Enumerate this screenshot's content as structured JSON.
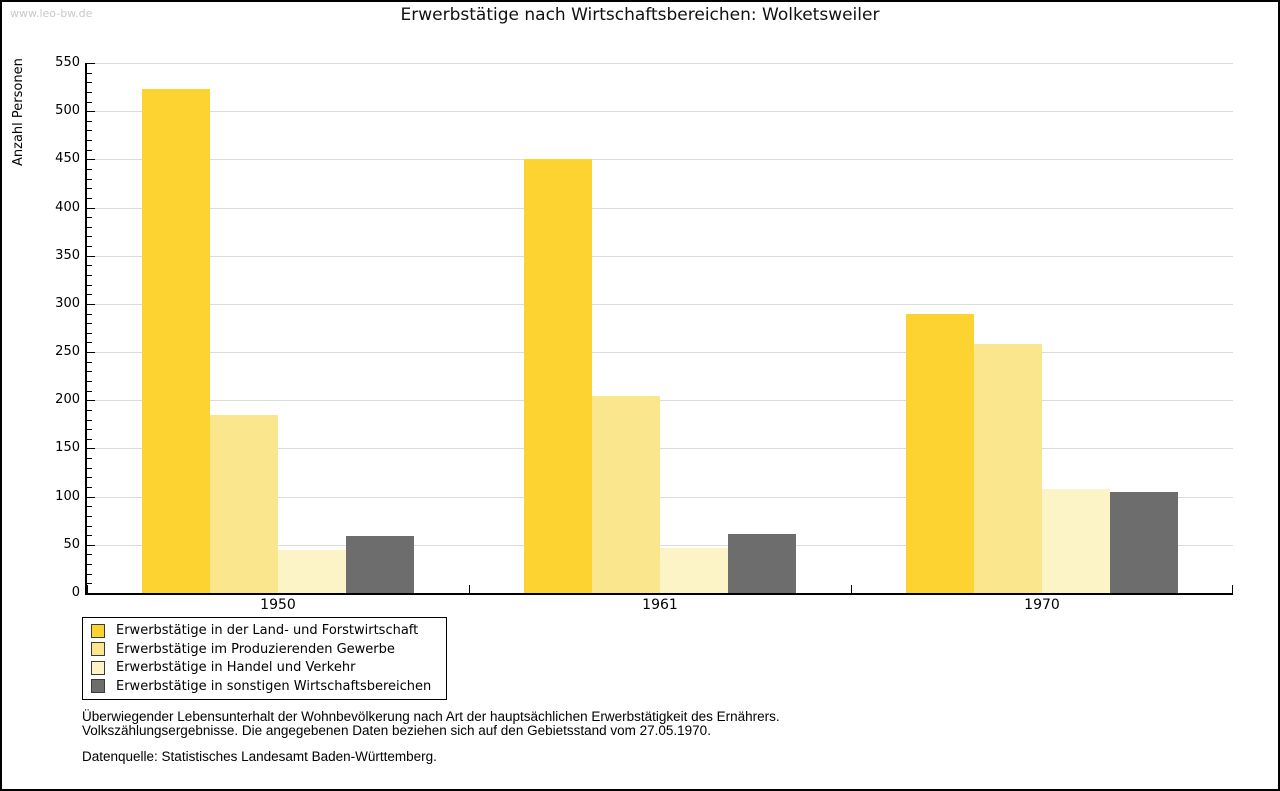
{
  "watermark": "www.leo-bw.de",
  "title": "Erwerbstätige nach Wirtschaftsbereichen: Wolketsweiler",
  "chart_data": {
    "type": "bar",
    "title": "Erwerbstätige nach Wirtschaftsbereichen: Wolketsweiler",
    "xlabel": "",
    "ylabel": "Anzahl Personen",
    "categories": [
      "1950",
      "1961",
      "1970"
    ],
    "series": [
      {
        "name": "Erwerbstätige in der Land- und Forstwirtschaft",
        "color": "#FCD330",
        "values": [
          523,
          450,
          290
        ]
      },
      {
        "name": "Erwerbstätige im Produzierenden Gewerbe",
        "color": "#FAE68C",
        "values": [
          185,
          204,
          258
        ]
      },
      {
        "name": "Erwerbstätige in Handel und Verkehr",
        "color": "#FCF4C6",
        "values": [
          45,
          47,
          108
        ]
      },
      {
        "name": "Erwerbstätige in sonstigen Wirtschaftsbereichen",
        "color": "#6D6D6D",
        "values": [
          59,
          61,
          105
        ]
      }
    ],
    "ylim": [
      0,
      550
    ],
    "yticks": [
      0,
      50,
      100,
      150,
      200,
      250,
      300,
      350,
      400,
      450,
      500,
      550
    ],
    "ytick_step": 50,
    "minor_tick_step": 10,
    "grid": true,
    "gridline_color": "#DCDCDC",
    "legend_position": "bottom-left"
  },
  "footer": {
    "line1": "Überwiegender Lebensunterhalt der Wohnbevölkerung nach Art der hauptsächlichen Erwerbstätigkeit des Ernährers.",
    "line2": "Volkszählungsergebnisse. Die angegebenen Daten beziehen sich auf den Gebietsstand vom 27.05.1970.",
    "source": "Datenquelle: Statistisches Landesamt Baden-Württemberg."
  }
}
